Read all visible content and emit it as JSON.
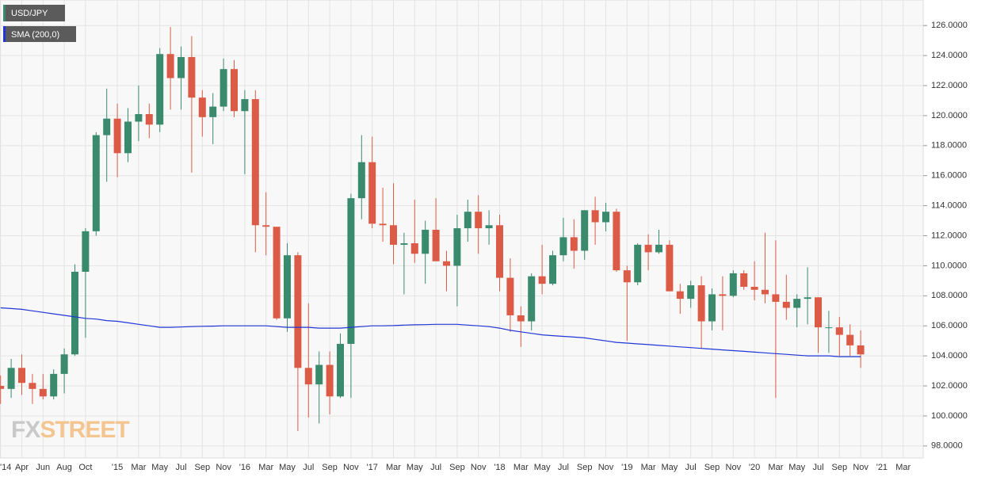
{
  "chart_data": {
    "type": "candlestick",
    "categories": [
      "'14",
      null,
      "Apr",
      null,
      "Jun",
      null,
      "Aug",
      null,
      "Oct",
      null,
      null,
      "'15",
      null,
      "Mar",
      null,
      "May",
      null,
      "Jul",
      null,
      "Sep",
      null,
      "Nov",
      null,
      "'16",
      null,
      "Mar",
      null,
      "May",
      null,
      "Jul",
      null,
      "Sep",
      null,
      "Nov",
      null,
      "'17",
      null,
      "Mar",
      null,
      "May",
      null,
      "Jul",
      null,
      "Sep",
      null,
      "Nov",
      null,
      "'18",
      null,
      "Mar",
      null,
      "May",
      null,
      "Jul",
      null,
      "Sep",
      null,
      "Nov",
      null,
      "'19",
      null,
      "Mar",
      null,
      "May",
      null,
      "Jul",
      null,
      "Sep",
      null,
      "Nov",
      null,
      "'20",
      null,
      "Mar",
      null,
      "May",
      null,
      "Jul",
      null,
      "Sep",
      null,
      "Nov",
      null,
      "'21",
      null,
      "Mar",
      null
    ],
    "series": [
      {
        "name": "USD/JPY",
        "type": "candlestick",
        "up_color": "#3a8a6e",
        "down_color": "#dc5b46",
        "open": [
          102.0,
          101.8,
          103.2,
          102.2,
          101.8,
          101.3,
          102.8,
          104.1,
          109.6,
          112.3,
          118.7,
          119.8,
          117.5,
          119.6,
          120.1,
          119.4,
          124.1,
          122.5,
          123.9,
          121.2,
          119.9,
          120.6,
          123.1,
          120.3,
          121.1,
          112.7,
          112.6,
          106.5,
          110.7,
          103.2,
          102.1,
          103.4,
          101.3,
          104.8,
          114.5,
          116.9,
          112.8,
          112.7,
          111.4,
          111.5,
          110.8,
          112.4,
          110.3,
          110.0,
          112.5,
          113.6,
          112.5,
          112.7,
          109.2,
          106.7,
          106.3,
          109.3,
          108.8,
          110.7,
          111.9,
          111.0,
          113.7,
          112.9,
          113.6,
          109.7,
          108.9,
          111.4,
          110.9,
          111.4,
          108.3,
          107.8,
          108.7,
          106.3,
          108.1,
          108.0,
          109.5,
          108.6,
          108.4,
          108.1,
          107.6,
          107.2,
          107.8,
          107.9,
          105.9,
          105.9,
          105.4,
          104.7,
          null,
          null,
          null,
          null,
          null
        ],
        "high": [
          102.7,
          103.8,
          104.1,
          102.8,
          102.8,
          103.1,
          104.5,
          110.1,
          112.5,
          118.9,
          121.8,
          120.8,
          120.5,
          122.0,
          120.8,
          124.5,
          125.9,
          124.6,
          125.3,
          121.7,
          121.5,
          123.8,
          123.7,
          121.7,
          121.7,
          114.9,
          112.4,
          111.5,
          110.9,
          107.5,
          104.3,
          104.3,
          105.5,
          114.8,
          118.7,
          118.6,
          115.2,
          115.5,
          112.2,
          114.4,
          113.0,
          114.5,
          111.0,
          113.4,
          114.4,
          114.7,
          113.7,
          113.4,
          110.5,
          107.3,
          109.5,
          111.4,
          111.0,
          113.2,
          113.1,
          113.7,
          114.6,
          114.2,
          113.8,
          110.0,
          111.5,
          112.1,
          112.4,
          111.7,
          108.8,
          109.0,
          109.3,
          108.5,
          109.3,
          109.7,
          109.7,
          110.3,
          112.2,
          111.7,
          109.4,
          108.1,
          109.9,
          107.9,
          107.0,
          106.6,
          106.1,
          105.7,
          null,
          null,
          null,
          null,
          null
        ],
        "low": [
          100.8,
          101.2,
          101.4,
          100.8,
          101.1,
          101.1,
          101.5,
          104.0,
          105.2,
          112.0,
          115.6,
          115.9,
          116.9,
          118.3,
          118.5,
          118.9,
          120.4,
          120.4,
          116.2,
          118.6,
          118.1,
          120.3,
          119.9,
          116.1,
          110.9,
          110.7,
          106.4,
          105.6,
          99.0,
          99.9,
          99.5,
          100.1,
          101.2,
          101.2,
          113.1,
          112.5,
          111.6,
          110.1,
          108.1,
          110.2,
          108.8,
          110.6,
          108.3,
          107.3,
          111.6,
          110.8,
          111.4,
          108.3,
          105.6,
          104.6,
          105.7,
          108.1,
          108.7,
          110.3,
          109.8,
          110.4,
          111.4,
          112.3,
          109.6,
          105.0,
          108.7,
          109.7,
          110.8,
          108.3,
          106.8,
          107.2,
          104.5,
          105.7,
          105.7,
          107.9,
          108.4,
          107.7,
          107.5,
          101.2,
          106.4,
          105.9,
          106.1,
          104.2,
          104.2,
          104.0,
          104.0,
          103.2,
          null,
          null,
          null,
          null,
          null
        ],
        "close": [
          101.8,
          103.2,
          102.2,
          101.8,
          101.3,
          102.8,
          104.1,
          109.6,
          112.3,
          118.7,
          119.8,
          117.5,
          119.6,
          120.1,
          119.4,
          124.1,
          122.5,
          123.9,
          121.2,
          119.9,
          120.6,
          123.1,
          120.3,
          121.1,
          112.7,
          112.6,
          106.5,
          110.7,
          103.2,
          102.1,
          103.4,
          101.3,
          104.8,
          114.5,
          116.9,
          112.8,
          112.7,
          111.4,
          111.5,
          110.8,
          112.4,
          110.3,
          110.0,
          112.5,
          113.6,
          112.5,
          112.7,
          109.2,
          106.7,
          106.3,
          109.3,
          108.8,
          110.7,
          111.9,
          111.0,
          113.7,
          112.9,
          113.6,
          109.7,
          108.9,
          111.4,
          110.9,
          111.4,
          108.3,
          107.8,
          108.7,
          106.3,
          108.1,
          108.0,
          109.5,
          108.6,
          108.4,
          108.1,
          107.6,
          107.2,
          107.8,
          107.9,
          105.9,
          105.9,
          105.4,
          104.7,
          104.1,
          null,
          null,
          null,
          null,
          null
        ]
      },
      {
        "name": "SMA (200,0)",
        "type": "line",
        "color": "#2036d6",
        "values": [
          107.2,
          107.15,
          107.1,
          107.0,
          106.9,
          106.8,
          106.7,
          106.6,
          106.5,
          106.45,
          106.35,
          106.3,
          106.2,
          106.1,
          106.0,
          105.9,
          105.9,
          105.92,
          105.95,
          105.97,
          105.98,
          106.0,
          106.0,
          106.0,
          106.0,
          106.0,
          105.95,
          105.9,
          105.9,
          105.9,
          105.85,
          105.85,
          105.85,
          105.9,
          105.95,
          106.0,
          106.0,
          106.02,
          106.05,
          106.07,
          106.08,
          106.1,
          106.1,
          106.1,
          106.05,
          106.0,
          105.95,
          105.85,
          105.7,
          105.6,
          105.5,
          105.4,
          105.35,
          105.3,
          105.25,
          105.2,
          105.1,
          105.0,
          104.9,
          104.85,
          104.8,
          104.75,
          104.7,
          104.65,
          104.6,
          104.55,
          104.5,
          104.45,
          104.4,
          104.35,
          104.3,
          104.25,
          104.2,
          104.15,
          104.1,
          104.05,
          104.0,
          104.0,
          104.0,
          103.95,
          103.95,
          103.95,
          null,
          null,
          null,
          null,
          null
        ]
      }
    ],
    "ylim": [
      97.2,
      127.7
    ],
    "yticks": [
      {
        "value": 98,
        "label": "98.0000"
      },
      {
        "value": 100,
        "label": "100.0000"
      },
      {
        "value": 102,
        "label": "102.0000"
      },
      {
        "value": 104,
        "label": "104.0000"
      },
      {
        "value": 106,
        "label": "106.0000"
      },
      {
        "value": 108,
        "label": "108.0000"
      },
      {
        "value": 110,
        "label": "110.0000"
      },
      {
        "value": 112,
        "label": "112.0000"
      },
      {
        "value": 114,
        "label": "114.0000"
      },
      {
        "value": 116,
        "label": "116.0000"
      },
      {
        "value": 118,
        "label": "118.0000"
      },
      {
        "value": 120,
        "label": "120.0000"
      },
      {
        "value": 122,
        "label": "122.0000"
      },
      {
        "value": 124,
        "label": "124.0000"
      },
      {
        "value": 126,
        "label": "126.0000"
      }
    ],
    "grid": true,
    "watermark": {
      "prefix": "FX",
      "suffix": "STREET"
    }
  }
}
